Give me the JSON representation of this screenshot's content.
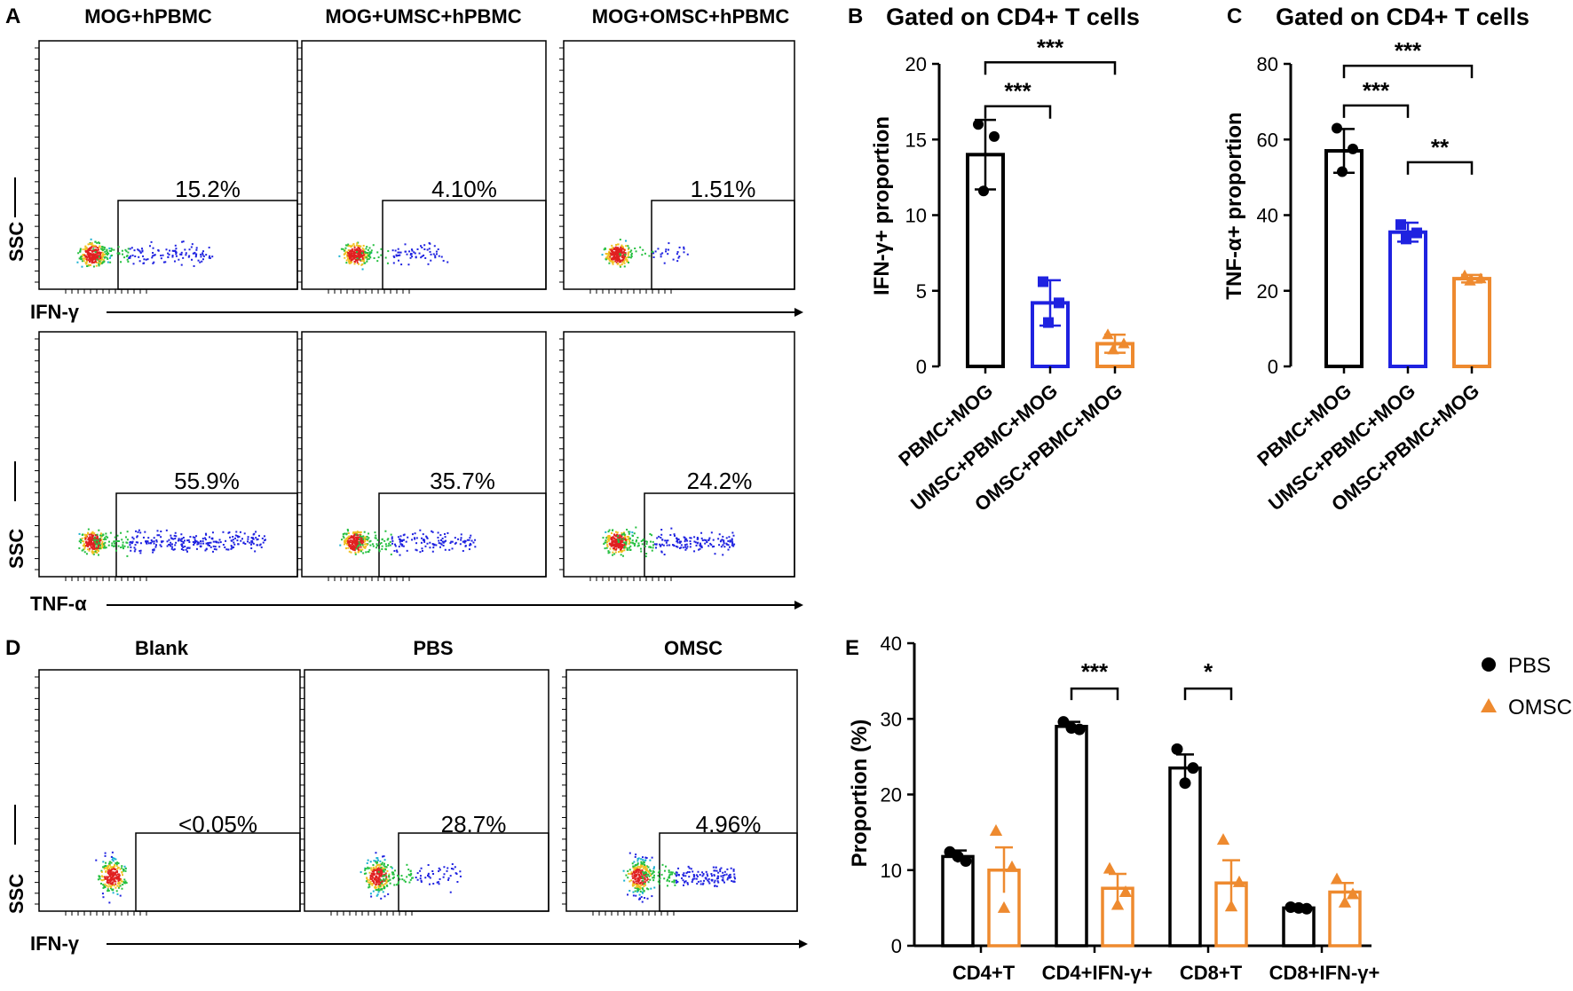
{
  "panel_letters": {
    "a": "A",
    "b": "B",
    "c": "C",
    "d": "D",
    "e": "E"
  },
  "colors": {
    "black": "#000000",
    "blue": "#1f22e0",
    "orange": "#ee8a2f",
    "axis": "#000000"
  },
  "flow_panels": [
    {
      "id": "A-ifng",
      "titles": [
        "MOG+hPBMC",
        "MOG+UMSC+hPBMC",
        "MOG+OMSC+hPBMC"
      ],
      "ylabel": "SSC",
      "xlabel": "IFN-γ",
      "gates": [
        "15.2%",
        "4.10%",
        "1.51%"
      ],
      "spread": [
        0.45,
        0.28,
        0.12
      ]
    },
    {
      "id": "A-tnfa",
      "titles": [],
      "ylabel": "SSC",
      "xlabel": "TNF-α",
      "gates": [
        "55.9%",
        "35.7%",
        "24.2%"
      ],
      "spread": [
        0.95,
        0.55,
        0.62
      ]
    },
    {
      "id": "D-ifng",
      "titles": [
        "Blank",
        "PBS",
        "OMSC"
      ],
      "ylabel": "SSC",
      "xlabel": "IFN-γ",
      "gates": [
        "<0.05%",
        "28.7%",
        "4.96%"
      ],
      "spread": [
        0.0,
        0.3,
        0.55
      ]
    }
  ],
  "chart_data": [
    {
      "id": "B",
      "type": "bar",
      "title": "Gated on CD4+ T cells",
      "ylabel": "IFN-γ+ proportion",
      "xlabel": "",
      "ylim": [
        0,
        20
      ],
      "yticks": [
        0,
        5,
        10,
        15,
        20
      ],
      "categories": [
        "PBMC+MOG",
        "UMSC+PBMC+MOG",
        "OMSC+PBMC+MOG"
      ],
      "values": [
        14.0,
        4.2,
        1.5
      ],
      "errors": [
        2.3,
        1.5,
        0.6
      ],
      "points": [
        [
          16.0,
          15.2,
          11.6
        ],
        [
          5.6,
          4.2,
          2.9
        ],
        [
          2.1,
          1.5,
          1.1
        ]
      ],
      "markers": [
        "circle",
        "square",
        "triangle"
      ],
      "colors": [
        "#000000",
        "#1f22e0",
        "#ee8a2f"
      ],
      "significance": [
        {
          "from": 0,
          "to": 1,
          "label": "***",
          "y": 17.2
        },
        {
          "from": 0,
          "to": 2,
          "label": "***",
          "y": 20.1
        }
      ]
    },
    {
      "id": "C",
      "type": "bar",
      "title": "Gated on CD4+ T cells",
      "ylabel": "TNF-α+ proportion",
      "xlabel": "",
      "ylim": [
        0,
        80
      ],
      "yticks": [
        0,
        20,
        40,
        60,
        80
      ],
      "categories": [
        "PBMC+MOG",
        "UMSC+PBMC+MOG",
        "OMSC+PBMC+MOG"
      ],
      "values": [
        57.0,
        35.5,
        23.2
      ],
      "errors": [
        5.8,
        2.5,
        1.0
      ],
      "points": [
        [
          63.0,
          57.5,
          51.5
        ],
        [
          37.5,
          35.3,
          33.7
        ],
        [
          24.0,
          23.2,
          22.6
        ]
      ],
      "markers": [
        "circle",
        "square",
        "triangle"
      ],
      "colors": [
        "#000000",
        "#1f22e0",
        "#ee8a2f"
      ],
      "significance": [
        {
          "from": 0,
          "to": 1,
          "label": "***",
          "y": 69.0
        },
        {
          "from": 1,
          "to": 2,
          "label": "**",
          "y": 54.0
        },
        {
          "from": 0,
          "to": 2,
          "label": "***",
          "y": 79.5
        }
      ]
    },
    {
      "id": "E",
      "type": "bar",
      "title": "",
      "ylabel": "Proportion (%)",
      "xlabel": "",
      "ylim": [
        0,
        40
      ],
      "yticks": [
        0,
        10,
        20,
        30,
        40
      ],
      "categories": [
        "CD4+T",
        "CD4+IFN-γ+",
        "CD8+T",
        "CD8+IFN-γ+"
      ],
      "series": [
        {
          "name": "PBS",
          "color": "#000000",
          "marker": "circle",
          "values": [
            11.8,
            29.0,
            23.5,
            5.0
          ],
          "errors": [
            0.8,
            0.6,
            1.8,
            0.3
          ],
          "points": [
            [
              12.4,
              11.2,
              11.8
            ],
            [
              29.6,
              28.6,
              28.8
            ],
            [
              26.0,
              23.5,
              21.5
            ],
            [
              5.1,
              4.9,
              5.0
            ]
          ]
        },
        {
          "name": "OMSC",
          "color": "#ee8a2f",
          "marker": "triangle",
          "values": [
            10.0,
            7.6,
            8.3,
            7.1
          ],
          "errors": [
            3.0,
            1.9,
            3.0,
            1.2
          ],
          "points": [
            [
              15.2,
              10.4,
              5.0
            ],
            [
              10.2,
              7.1,
              5.4
            ],
            [
              14.0,
              8.4,
              5.2
            ],
            [
              8.8,
              6.8,
              5.7
            ]
          ]
        }
      ],
      "significance": [
        {
          "group": 1,
          "label": "***",
          "y": 34.0
        },
        {
          "group": 2,
          "label": "*",
          "y": 34.0
        }
      ],
      "legend": "top-right"
    }
  ]
}
